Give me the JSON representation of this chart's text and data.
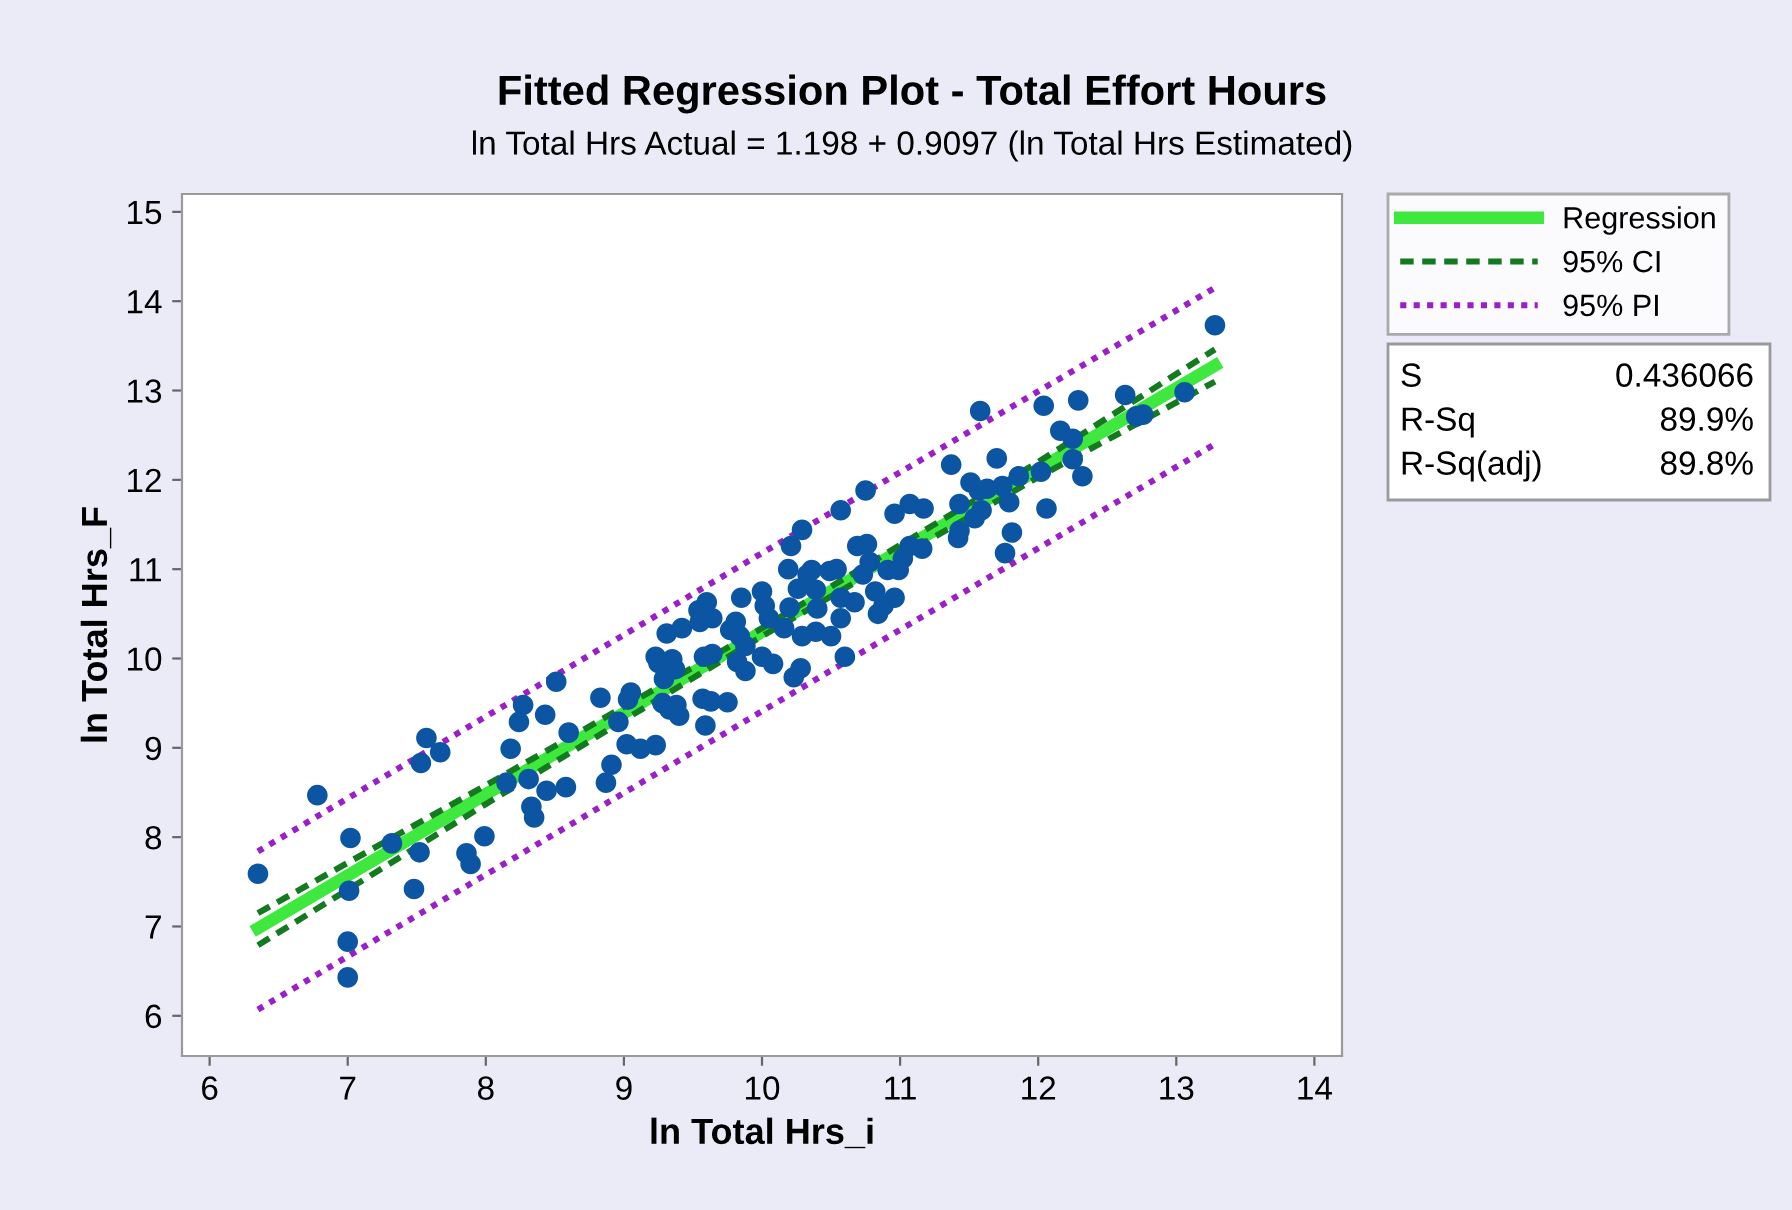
{
  "chart_data": {
    "type": "scatter",
    "title": "Fitted Regression Plot - Total Effort Hours",
    "subtitle": "ln Total Hrs Actual = 1.198 + 0.9097 (ln Total Hrs Estimated)",
    "xlabel": "ln Total Hrs_i",
    "ylabel": "ln Total Hrs_F",
    "xlim": [
      5.8,
      14.2
    ],
    "ylim": [
      5.55,
      15.2
    ],
    "xticks": [
      6,
      7,
      8,
      9,
      10,
      11,
      12,
      13,
      14
    ],
    "yticks": [
      6,
      7,
      8,
      9,
      10,
      11,
      12,
      13,
      14,
      15
    ],
    "grid": false,
    "legend": "right",
    "annotations": [
      "S",
      "0.436066",
      "R-Sq",
      "89.9%",
      "R-Sq(adj)",
      "89.8%"
    ],
    "series": [
      {
        "marker": "circle",
        "color": "#0b55a3",
        "x": [
          6.35,
          6.78,
          7.02,
          7.01,
          7.0,
          7.0,
          7.32,
          7.52,
          7.48,
          7.53,
          7.57,
          7.67,
          7.86,
          7.89,
          7.99,
          8.15,
          8.18,
          8.24,
          8.27,
          8.31,
          8.33,
          8.35,
          8.44,
          8.43,
          8.51,
          8.58,
          8.6,
          8.83,
          8.87,
          8.91,
          8.96,
          9.02,
          9.05,
          9.03,
          9.12,
          9.23,
          9.23,
          9.25,
          9.31,
          9.29,
          9.28,
          9.35,
          9.37,
          9.33,
          9.38,
          9.4,
          9.42,
          9.54,
          9.55,
          9.6,
          9.64,
          9.58,
          9.64,
          9.57,
          9.63,
          9.59,
          9.75,
          9.77,
          9.81,
          9.84,
          9.85,
          9.88,
          9.82,
          9.88,
          10.0,
          10.02,
          10.05,
          10.0,
          10.08,
          10.16,
          10.2,
          10.19,
          10.21,
          10.29,
          10.26,
          10.23,
          10.28,
          10.29,
          10.33,
          10.36,
          10.39,
          10.4,
          10.39,
          10.5,
          10.49,
          10.54,
          10.57,
          10.57,
          10.57,
          10.6,
          10.67,
          10.69,
          10.76,
          10.75,
          10.73,
          10.78,
          10.82,
          10.84,
          10.88,
          10.91,
          10.96,
          10.96,
          11.02,
          10.99,
          11.07,
          11.07,
          11.16,
          11.17,
          11.37,
          11.43,
          11.42,
          11.43,
          11.51,
          11.54,
          11.57,
          11.59,
          11.58,
          11.63,
          11.7,
          11.74,
          11.79,
          11.81,
          11.76,
          11.86,
          12.02,
          12.04,
          12.06,
          12.16,
          12.25,
          12.25,
          12.29,
          12.32,
          12.63,
          12.71,
          12.76,
          13.06,
          13.28
        ],
        "values": [
          7.59,
          8.47,
          7.99,
          7.4,
          6.83,
          6.43,
          7.93,
          7.83,
          7.42,
          8.83,
          9.11,
          8.95,
          7.82,
          7.7,
          8.01,
          8.61,
          8.99,
          9.29,
          9.48,
          8.65,
          8.34,
          8.22,
          8.52,
          9.37,
          9.74,
          8.56,
          9.17,
          9.56,
          8.61,
          8.81,
          9.29,
          9.04,
          9.62,
          9.54,
          8.99,
          9.03,
          10.02,
          9.95,
          10.28,
          9.77,
          9.5,
          9.99,
          9.88,
          9.43,
          9.48,
          9.36,
          10.34,
          10.54,
          10.41,
          10.63,
          10.45,
          10.02,
          10.05,
          9.55,
          9.52,
          9.25,
          9.51,
          10.32,
          10.41,
          10.25,
          10.68,
          10.14,
          9.96,
          9.86,
          10.75,
          10.59,
          10.45,
          10.02,
          9.94,
          10.34,
          10.57,
          11.0,
          11.26,
          11.44,
          10.78,
          9.79,
          9.89,
          10.25,
          10.94,
          10.99,
          10.77,
          10.56,
          10.3,
          10.25,
          10.98,
          11.0,
          11.66,
          10.45,
          10.68,
          10.02,
          10.63,
          11.26,
          11.28,
          11.88,
          10.94,
          11.08,
          10.75,
          10.5,
          10.59,
          10.99,
          10.68,
          11.62,
          11.12,
          10.99,
          11.73,
          11.26,
          11.23,
          11.68,
          12.17,
          11.73,
          11.35,
          11.43,
          11.97,
          11.57,
          11.88,
          11.66,
          12.77,
          11.9,
          12.24,
          11.93,
          11.75,
          11.41,
          11.18,
          12.04,
          12.09,
          12.83,
          11.68,
          12.55,
          12.46,
          12.23,
          12.89,
          12.04,
          12.95,
          12.71,
          12.73,
          12.98,
          13.73
        ]
      },
      {
        "type": "line",
        "name": "Regression",
        "color": "#3ee83e",
        "x": [
          6.35,
          13.28
        ],
        "values": [
          6.98,
          13.28
        ],
        "marker": "none"
      },
      {
        "type": "line",
        "name": "95% CI",
        "color": "#137a1f",
        "line_style": "dashed",
        "x": [
          6.35,
          8,
          10,
          12,
          13.28
        ],
        "values": [
          7.15,
          8.58,
          10.34,
          12.2,
          13.46
        ]
      },
      {
        "type": "line",
        "color": "#137a1f",
        "line_style": "dashed",
        "x": [
          6.35,
          8,
          10,
          12,
          13.28
        ],
        "values": [
          6.79,
          8.37,
          10.25,
          12.03,
          13.1
        ]
      },
      {
        "type": "line",
        "name": "95% PI",
        "color": "#9a1fc8",
        "line_style": "dotted",
        "x": [
          6.35,
          10,
          13.28
        ],
        "values": [
          7.84,
          11.18,
          14.15
        ]
      },
      {
        "type": "line",
        "color": "#9a1fc8",
        "line_style": "dotted",
        "x": [
          6.35,
          10,
          13.28
        ],
        "values": [
          6.07,
          9.41,
          12.4
        ]
      }
    ]
  }
}
